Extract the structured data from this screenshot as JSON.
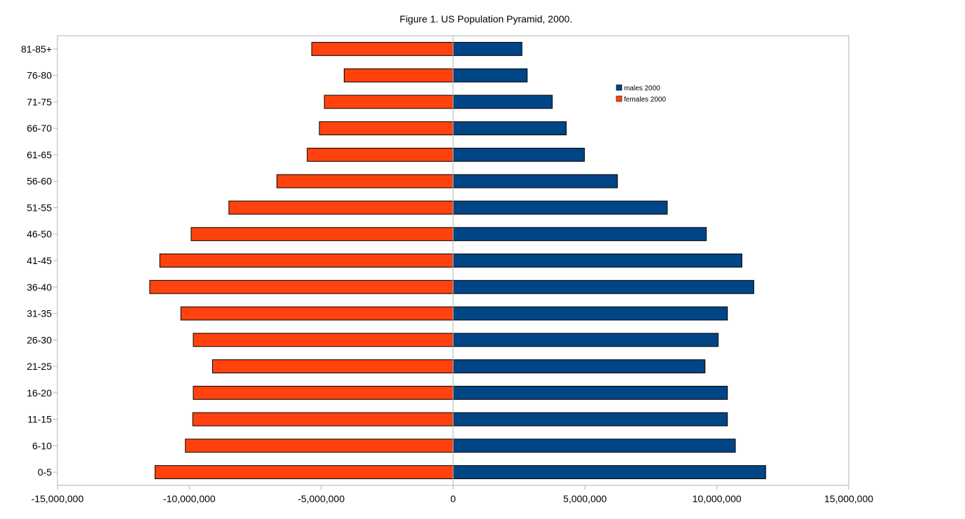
{
  "chart_data": {
    "type": "bar",
    "orientation": "horizontal",
    "title": "Figure 1. US Population Pyramid, 2000.",
    "categories": [
      "0-5",
      "6-10",
      "11-15",
      "16-20",
      "21-25",
      "26-30",
      "31-35",
      "36-40",
      "41-45",
      "46-50",
      "51-55",
      "56-60",
      "61-65",
      "66-70",
      "71-75",
      "76-80",
      "81-85+"
    ],
    "series": [
      {
        "name": "males 2000",
        "color": "#004586",
        "values": [
          11850000,
          10700000,
          10400000,
          10400000,
          9550000,
          10050000,
          10400000,
          11400000,
          10950000,
          9600000,
          8120000,
          6230000,
          4980000,
          4290000,
          3760000,
          2810000,
          2610000
        ]
      },
      {
        "name": "females 2000",
        "color": "#ff420e",
        "values": [
          -11300000,
          -10150000,
          -9870000,
          -9850000,
          -9120000,
          -9850000,
          -10320000,
          -11500000,
          -11120000,
          -9930000,
          -8500000,
          -6680000,
          -5530000,
          -5070000,
          -4880000,
          -4130000,
          -5360000
        ]
      }
    ],
    "xlim": [
      -15000000,
      15000000
    ],
    "xticks": [
      -15000000,
      -10000000,
      -5000000,
      0,
      5000000,
      10000000,
      15000000
    ],
    "xtick_labels": [
      "-15,000,000",
      "-10,000,000",
      "-5,000,000",
      "0",
      "5,000,000",
      "10,000,000",
      "15,000,000"
    ],
    "xlabel": "",
    "ylabel": "",
    "grid": false,
    "legend_position": "top-right"
  }
}
